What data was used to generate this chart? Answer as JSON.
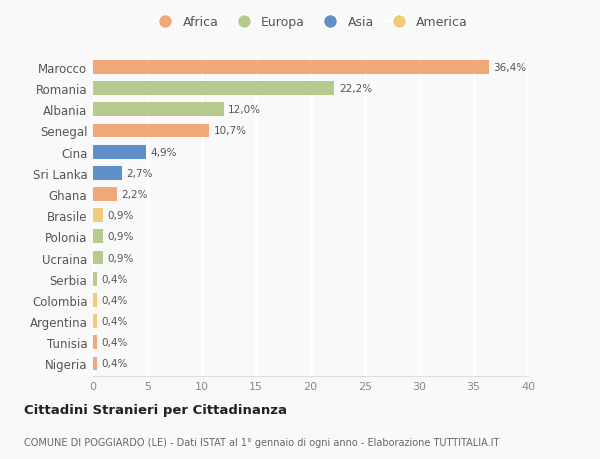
{
  "countries": [
    "Marocco",
    "Romania",
    "Albania",
    "Senegal",
    "Cina",
    "Sri Lanka",
    "Ghana",
    "Brasile",
    "Polonia",
    "Ucraina",
    "Serbia",
    "Colombia",
    "Argentina",
    "Tunisia",
    "Nigeria"
  ],
  "values": [
    36.4,
    22.2,
    12.0,
    10.7,
    4.9,
    2.7,
    2.2,
    0.9,
    0.9,
    0.9,
    0.4,
    0.4,
    0.4,
    0.4,
    0.4
  ],
  "labels": [
    "36,4%",
    "22,2%",
    "12,0%",
    "10,7%",
    "4,9%",
    "2,7%",
    "2,2%",
    "0,9%",
    "0,9%",
    "0,9%",
    "0,4%",
    "0,4%",
    "0,4%",
    "0,4%",
    "0,4%"
  ],
  "continents": [
    "Africa",
    "Europa",
    "Europa",
    "Africa",
    "Asia",
    "Asia",
    "Africa",
    "America",
    "Europa",
    "Europa",
    "Europa",
    "America",
    "America",
    "Africa",
    "Africa"
  ],
  "continent_colors": {
    "Africa": "#F0A878",
    "Europa": "#B5CA8C",
    "Asia": "#6090C8",
    "America": "#F0CC78"
  },
  "legend_order": [
    "Africa",
    "Europa",
    "Asia",
    "America"
  ],
  "xlim": [
    0,
    40
  ],
  "xticks": [
    0,
    5,
    10,
    15,
    20,
    25,
    30,
    35,
    40
  ],
  "title": "Cittadini Stranieri per Cittadinanza",
  "subtitle": "COMUNE DI POGGIARDO (LE) - Dati ISTAT al 1° gennaio di ogni anno - Elaborazione TUTTITALIA.IT",
  "background_color": "#f9f9f9",
  "grid_color": "#ffffff",
  "bar_height": 0.65
}
